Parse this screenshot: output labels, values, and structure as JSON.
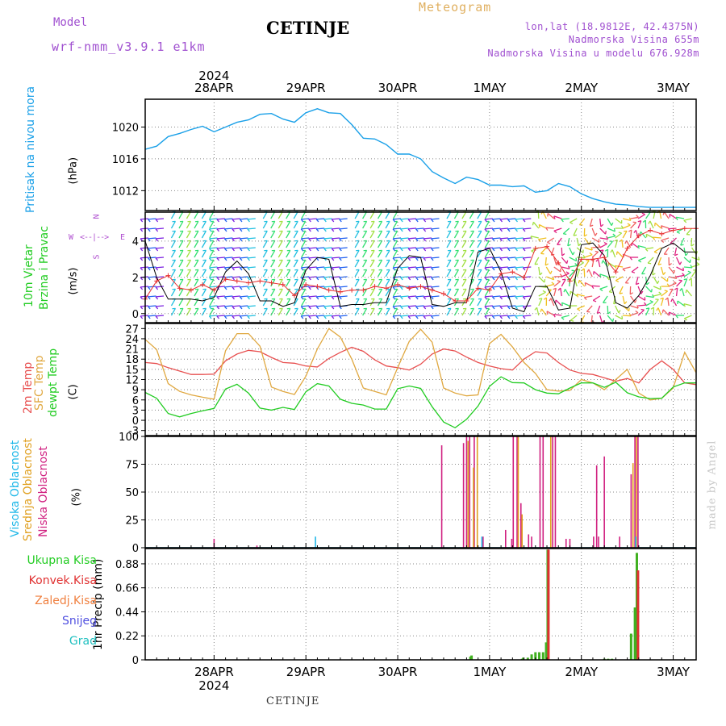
{
  "header": {
    "model_label": "Model",
    "model_name": "wrf-nmm_v3.9.1 e1km",
    "city": "CETINJE",
    "meteogram": "Meteogram",
    "lonlat": "lon,lat (18.9812E, 42.4375N)",
    "altitude": "Nadmorska Visina 655m",
    "altitude_model": "Nadmorska Visina u modelu 676.928m"
  },
  "dates": {
    "top_year": "2024",
    "bottom_year": "2024",
    "labels": [
      "28APR",
      "29APR",
      "30APR",
      "1MAY",
      "2MAY",
      "3MAY"
    ]
  },
  "panels": {
    "pressure": {
      "title": "Pritisak na nivou mora",
      "unit": "(hPa)"
    },
    "wind": {
      "title1": "10m Vjetar",
      "title2": "Brzina i Pravac",
      "unit": "(m/s)",
      "compass_n": "N",
      "compass_w": "W",
      "compass_e": "E",
      "compass_s": "S",
      "compass_arrow": "<--|-->"
    },
    "temp": {
      "title1": "2m Temp",
      "title2": "SFC Temp",
      "title3": "dewpt Temp",
      "unit": "(C)"
    },
    "cloud": {
      "title1": "Visoka Oblacnost",
      "title2": "Srednja Oblacnost",
      "title3": "Niska Oblacnost",
      "unit": "(%)"
    },
    "precip": {
      "title": "1hr Precip (mm)",
      "legend": [
        "Ukupna Kisa",
        "Konvek.Kisa",
        "Zaledj.Kisa",
        "Snijeg",
        "Grad"
      ]
    }
  },
  "footer": {
    "city": "CETINJE",
    "made_by": "made by Angel"
  },
  "colors": {
    "pressure": "#1aa0e8",
    "temp2m": "#e85050",
    "sfc": "#e0a840",
    "dewpt": "#22cc22",
    "high_cloud": "#20b8e8",
    "mid_cloud": "#e0a020",
    "low_cloud": "#d02080",
    "total_rain": "#40b020",
    "conv_rain": "#e03030",
    "freezing": "#f08040",
    "snow": "#5050e0",
    "hail": "#20c0c0",
    "model_text": "#a050d0",
    "meteogram_text": "#e0b060",
    "altitude_model": "#a050d0"
  },
  "chart_data": [
    {
      "type": "line",
      "title": "Pritisak na nivou mora",
      "ylabel": "(hPa)",
      "ylim": [
        1009.5,
        1023.5
      ],
      "yticks": [
        1012,
        1016,
        1020
      ],
      "x_hours": [
        0,
        3,
        6,
        9,
        12,
        15,
        18,
        21,
        24,
        27,
        30,
        33,
        36,
        39,
        42,
        45,
        48,
        51,
        54,
        57,
        60,
        63,
        66,
        69,
        72,
        75,
        78,
        81,
        84,
        87,
        90,
        93,
        96,
        99,
        102,
        105,
        108,
        111,
        114,
        117,
        120,
        123,
        126,
        129,
        132,
        135,
        138,
        141,
        144
      ],
      "series": [
        {
          "values": [
            1017.2,
            1017.6,
            1018.8,
            1019.2,
            1019.7,
            1020.1,
            1019.4,
            1020.0,
            1020.6,
            1020.9,
            1021.6,
            1021.7,
            1021.0,
            1020.6,
            1021.8,
            1022.3,
            1021.8,
            1021.7,
            1020.3,
            1018.6,
            1018.5,
            1017.8,
            1016.6,
            1016.6,
            1016.0,
            1014.4,
            1013.6,
            1012.9,
            1013.7,
            1013.4,
            1012.7,
            1012.7,
            1012.5,
            1012.6,
            1011.8,
            1012.0,
            1012.9,
            1012.5,
            1011.6,
            1011.0,
            1010.3,
            1010.3,
            1010.0,
            1010.0,
            1010.0,
            1010.0,
            1010.0,
            1010.0,
            1010.0
          ]
        }
      ]
    },
    {
      "type": "line",
      "title": "10m Vjetar Brzina i Pravac",
      "ylabel": "(m/s)",
      "ylim": [
        -0.5,
        5.6
      ],
      "yticks": [
        0,
        2,
        4
      ],
      "x_hours": [
        0,
        3,
        6,
        9,
        12,
        15,
        18,
        21,
        24,
        27,
        30,
        33,
        36,
        39,
        42,
        45,
        48,
        51,
        54,
        57,
        60,
        63,
        66,
        69,
        72,
        75,
        78,
        81,
        84,
        87,
        90,
        93,
        96,
        99,
        102,
        105,
        108,
        111,
        114,
        117,
        120,
        123,
        126,
        129,
        132,
        135,
        138,
        141,
        144
      ],
      "series": [
        {
          "values": [
            4.0,
            2.0,
            0.8,
            0.8,
            0.8,
            0.7,
            0.9,
            2.3,
            2.9,
            2.2,
            0.7,
            0.7,
            0.4,
            0.6,
            2.4,
            3.1,
            3.0,
            0.4,
            0.5,
            0.5,
            0.6,
            0.6,
            2.5,
            3.2,
            3.1,
            0.5,
            0.4,
            0.6,
            0.6,
            3.4,
            3.6,
            2.3,
            0.3,
            0.1,
            1.5,
            1.5,
            0.2,
            0.3,
            3.8,
            3.9,
            3.2,
            0.6,
            0.3,
            1.0,
            2.1,
            3.6,
            3.9,
            3.4,
            3.4
          ]
        },
        {
          "values": [
            0.8,
            1.8,
            2.1,
            1.4,
            1.3,
            1.6,
            1.3,
            1.9,
            1.8,
            1.7,
            1.8,
            1.7,
            1.6,
            1.0,
            1.6,
            1.5,
            1.3,
            1.2,
            1.3,
            1.3,
            1.5,
            1.4,
            1.6,
            1.4,
            1.5,
            1.3,
            1.1,
            0.7,
            0.7,
            1.4,
            1.3,
            2.2,
            2.3,
            2.0,
            3.6,
            3.7,
            2.8,
            1.8,
            3.0,
            3.0,
            3.1,
            2.3,
            3.6,
            4.3,
            4.6,
            4.4,
            4.6,
            4.7,
            4.7
          ]
        }
      ]
    },
    {
      "type": "line",
      "title": "2m Temp / SFC Temp / dewpt Temp",
      "ylabel": "(C)",
      "ylim": [
        -4.5,
        28.5
      ],
      "yticks": [
        -3,
        0,
        3,
        6,
        9,
        12,
        15,
        18,
        21,
        24,
        27
      ],
      "x_hours": [
        0,
        3,
        6,
        9,
        12,
        15,
        18,
        21,
        24,
        27,
        30,
        33,
        36,
        39,
        42,
        45,
        48,
        51,
        54,
        57,
        60,
        63,
        66,
        69,
        72,
        75,
        78,
        81,
        84,
        87,
        90,
        93,
        96,
        99,
        102,
        105,
        108,
        111,
        114,
        117,
        120,
        123,
        126,
        129,
        132,
        135,
        138,
        141,
        144
      ],
      "series": [
        {
          "name": "2m Temp",
          "values": [
            17.0,
            16.7,
            15.5,
            14.5,
            13.5,
            13.5,
            13.6,
            17.5,
            19.5,
            20.6,
            20.2,
            18.5,
            17.0,
            16.8,
            16.0,
            15.7,
            18.2,
            20.0,
            21.5,
            20.3,
            17.8,
            16.0,
            15.5,
            14.8,
            16.5,
            19.5,
            21.0,
            20.4,
            18.6,
            17.0,
            16.0,
            15.2,
            14.8,
            18.0,
            20.2,
            19.8,
            17.0,
            14.8,
            13.8,
            13.5,
            12.5,
            11.5,
            12.3,
            11.0,
            15.0,
            17.5,
            15.0,
            11.0,
            10.5
          ]
        },
        {
          "name": "SFC Temp",
          "values": [
            23.8,
            20.8,
            10.8,
            8.5,
            7.5,
            6.8,
            6.2,
            20.5,
            25.5,
            25.5,
            21.8,
            9.8,
            8.5,
            7.6,
            13.0,
            21.0,
            27.0,
            24.5,
            18.0,
            9.5,
            8.5,
            7.5,
            15.5,
            23.2,
            26.8,
            23.0,
            9.5,
            8.0,
            7.2,
            7.5,
            22.6,
            25.3,
            21.6,
            17.0,
            13.8,
            9.0,
            8.6,
            8.8,
            12.0,
            11.0,
            9.0,
            12.0,
            15.0,
            8.0,
            6.0,
            6.5,
            9.5,
            20.0,
            14.0
          ]
        },
        {
          "name": "dewpt Temp",
          "values": [
            8.2,
            6.5,
            2.0,
            1.0,
            2.0,
            2.8,
            3.5,
            9.2,
            10.6,
            8.0,
            3.6,
            3.0,
            3.8,
            3.2,
            8.4,
            10.8,
            10.1,
            6.2,
            5.0,
            4.5,
            3.3,
            3.3,
            9.3,
            10.1,
            9.4,
            4.0,
            -0.5,
            -2.2,
            0.3,
            4.2,
            10.0,
            12.8,
            11.1,
            11.0,
            9.0,
            8.0,
            7.8,
            9.5,
            11.0,
            11.0,
            9.7,
            11.2,
            8.1,
            6.9,
            6.4,
            6.5,
            9.8,
            11.0,
            11.0
          ]
        }
      ]
    },
    {
      "type": "bar",
      "title": "Visoka / Srednja / Niska Oblacnost",
      "ylabel": "(%)",
      "ylim": [
        0,
        100
      ],
      "yticks": [
        0,
        25,
        50,
        75,
        100
      ],
      "series": [
        {
          "name": "Niska Oblacnost",
          "x_hours": [
            18.0,
            29.2,
            77.5,
            83.2,
            84.0,
            84.8,
            86.0,
            88.3,
            94.2,
            95.8,
            96.2,
            97.2,
            98.2,
            100.2,
            101.0,
            103.2,
            104.0,
            106.5,
            107.2,
            110.0,
            111.0,
            117.2,
            118.0,
            118.5,
            120.0,
            124.0,
            127.0,
            128.0,
            128.8
          ],
          "values": [
            8,
            2,
            92,
            94,
            100,
            100,
            100,
            10,
            16,
            8,
            100,
            100,
            40,
            12,
            10,
            100,
            100,
            100,
            100,
            8,
            8,
            10,
            74,
            10,
            82,
            10,
            66,
            100,
            100
          ]
        },
        {
          "name": "Srednja Oblacnost",
          "x_hours": [
            84.4,
            85.8,
            86.8,
            97.5,
            98.5,
            106.0,
            127.5,
            128.4
          ],
          "values": [
            96,
            72,
            100,
            100,
            30,
            100,
            76,
            100
          ]
        },
        {
          "name": "Visoka Oblacnost",
          "x_hours": [
            44.5,
            88.0,
            128.2
          ],
          "values": [
            10,
            10,
            10
          ]
        }
      ]
    },
    {
      "type": "bar",
      "title": "1hr Precip (mm)",
      "ylabel": "1hr Precip (mm)",
      "ylim": [
        0,
        1.02
      ],
      "yticks": [
        0,
        0.22,
        0.44,
        0.66,
        0.88
      ],
      "series": [
        {
          "name": "Ukupna Kisa",
          "x_hours": [
            85.0,
            85.3,
            98.5,
            98.8,
            100.0,
            101.0,
            102.0,
            103.0,
            104.0,
            104.8,
            105.2,
            120.0,
            121.0,
            122.0,
            127.0,
            128.0,
            128.5
          ],
          "values": [
            0.03,
            0.04,
            0.01,
            0.02,
            0.02,
            0.05,
            0.07,
            0.07,
            0.07,
            0.16,
            1.01,
            0.01,
            0.01,
            0.01,
            0.24,
            0.48,
            0.98
          ]
        },
        {
          "name": "Konvek.Kisa",
          "x_hours": [
            105.4,
            128.8
          ],
          "values": [
            1.01,
            0.82
          ]
        }
      ]
    }
  ]
}
